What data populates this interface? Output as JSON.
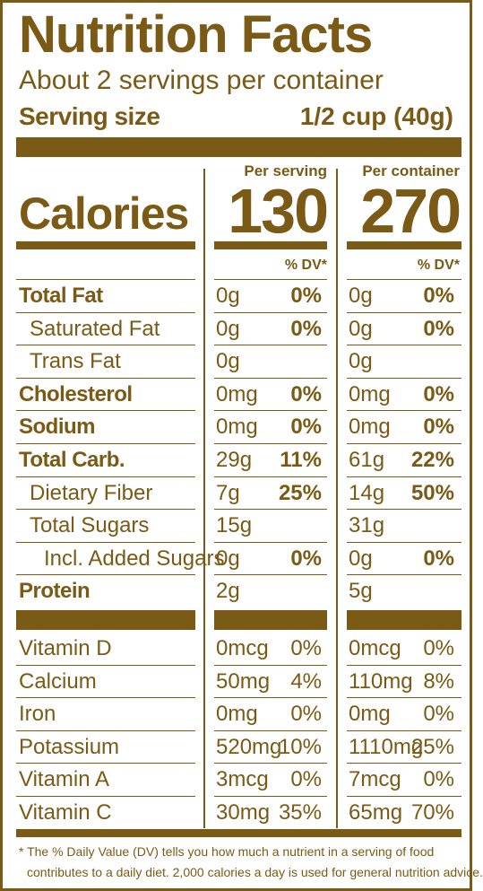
{
  "title": "Nutrition Facts",
  "servings_per_container": "About 2 servings per container",
  "serving_size": {
    "label": "Serving size",
    "value": "1/2 cup (40g)"
  },
  "columns": {
    "per_serving": {
      "header": "Per serving",
      "calories": "130",
      "dv_header": "% DV*"
    },
    "per_container": {
      "header": "Per container",
      "calories": "270",
      "dv_header": "% DV*"
    }
  },
  "calories_label": "Calories",
  "nutrients": [
    {
      "name": "Total Fat",
      "bold": true,
      "indent": 0,
      "serving_amount": "0g",
      "serving_dv": "0%",
      "container_amount": "0g",
      "container_dv": "0%"
    },
    {
      "name": "Saturated Fat",
      "bold": false,
      "indent": 1,
      "serving_amount": "0g",
      "serving_dv": "0%",
      "container_amount": "0g",
      "container_dv": "0%"
    },
    {
      "name": "Trans Fat",
      "bold": false,
      "indent": 1,
      "serving_amount": "0g",
      "serving_dv": "",
      "container_amount": "0g",
      "container_dv": ""
    },
    {
      "name": "Cholesterol",
      "bold": true,
      "indent": 0,
      "serving_amount": "0mg",
      "serving_dv": "0%",
      "container_amount": "0mg",
      "container_dv": "0%"
    },
    {
      "name": "Sodium",
      "bold": true,
      "indent": 0,
      "serving_amount": "0mg",
      "serving_dv": "0%",
      "container_amount": "0mg",
      "container_dv": "0%"
    },
    {
      "name": "Total Carb.",
      "bold": true,
      "indent": 0,
      "serving_amount": "29g",
      "serving_dv": "11%",
      "container_amount": "61g",
      "container_dv": "22%"
    },
    {
      "name": "Dietary Fiber",
      "bold": false,
      "indent": 1,
      "serving_amount": "7g",
      "serving_dv": "25%",
      "container_amount": "14g",
      "container_dv": "50%"
    },
    {
      "name": "Total Sugars",
      "bold": false,
      "indent": 1,
      "serving_amount": "15g",
      "serving_dv": "",
      "container_amount": "31g",
      "container_dv": ""
    },
    {
      "name": "Incl. Added Sugars",
      "bold": false,
      "indent": 2,
      "serving_amount": "0g",
      "serving_dv": "0%",
      "container_amount": "0g",
      "container_dv": "0%"
    },
    {
      "name": "Protein",
      "bold": true,
      "indent": 0,
      "serving_amount": "2g",
      "serving_dv": "",
      "container_amount": "5g",
      "container_dv": ""
    }
  ],
  "vitamins": [
    {
      "name": "Vitamin D",
      "serving_amount": "0mcg",
      "serving_dv": "0%",
      "container_amount": "0mcg",
      "container_dv": "0%"
    },
    {
      "name": "Calcium",
      "serving_amount": "50mg",
      "serving_dv": "4%",
      "container_amount": "110mg",
      "container_dv": "8%"
    },
    {
      "name": "Iron",
      "serving_amount": "0mg",
      "serving_dv": "0%",
      "container_amount": "0mg",
      "container_dv": "0%"
    },
    {
      "name": "Potassium",
      "serving_amount": "520mg",
      "serving_dv": "10%",
      "container_amount": "1110mg",
      "container_dv": "25%"
    },
    {
      "name": "Vitamin A",
      "serving_amount": "3mcg",
      "serving_dv": "0%",
      "container_amount": "7mcg",
      "container_dv": "0%"
    },
    {
      "name": "Vitamin C",
      "serving_amount": "30mg",
      "serving_dv": "35%",
      "container_amount": "65mg",
      "container_dv": "70%"
    }
  ],
  "footnote": {
    "line1": "* The % Daily Value (DV) tells you how much a nutrient in a serving of food",
    "line2": "contributes to a daily diet. 2,000 calories a day is used for general nutrition advice."
  },
  "colors": {
    "ink": "#7a5a14",
    "background": "#ffffff"
  }
}
